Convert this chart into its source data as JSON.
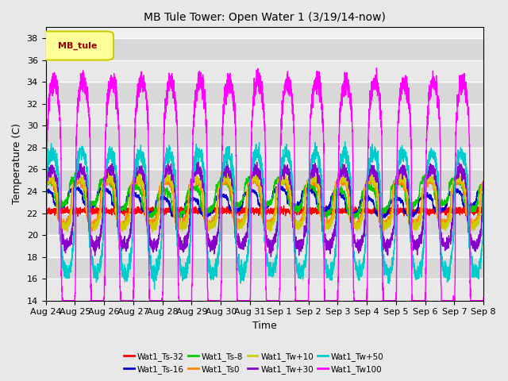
{
  "title": "MB Tule Tower: Open Water 1 (3/19/14-now)",
  "xlabel": "Time",
  "ylabel": "Temperature (C)",
  "ylim": [
    14,
    39
  ],
  "yticks": [
    14,
    16,
    18,
    20,
    22,
    24,
    26,
    28,
    30,
    32,
    34,
    36,
    38
  ],
  "series": [
    {
      "label": "Wat1_Ts-32",
      "color": "#ff0000"
    },
    {
      "label": "Wat1_Ts-16",
      "color": "#0000cc"
    },
    {
      "label": "Wat1_Ts-8",
      "color": "#00cc00"
    },
    {
      "label": "Wat1_Ts0",
      "color": "#ff8800"
    },
    {
      "label": "Wat1_Tw+10",
      "color": "#cccc00"
    },
    {
      "label": "Wat1_Tw+30",
      "color": "#8800cc"
    },
    {
      "label": "Wat1_Tw+50",
      "color": "#00cccc"
    },
    {
      "label": "Wat1_Tw100",
      "color": "#ff00ff"
    }
  ],
  "x_tick_labels": [
    "Aug 24",
    "Aug 25",
    "Aug 26",
    "Aug 27",
    "Aug 28",
    "Aug 29",
    "Aug 30",
    "Aug 31",
    "Sep 1",
    "Sep 2",
    "Sep 3",
    "Sep 4",
    "Sep 5",
    "Sep 6",
    "Sep 7",
    "Sep 8"
  ],
  "n_days": 15,
  "legend_label": "MB_tule",
  "legend_text_color": "#990000",
  "legend_bg": "#ffff99",
  "legend_border": "#cccc00"
}
